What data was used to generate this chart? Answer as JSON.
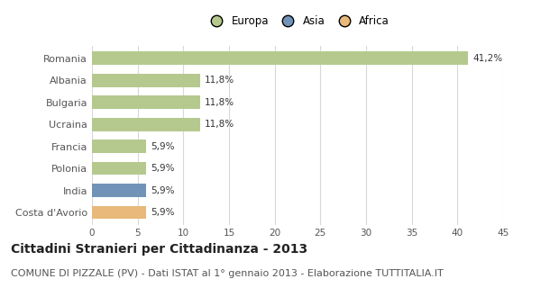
{
  "categories": [
    "Romania",
    "Albania",
    "Bulgaria",
    "Ucraina",
    "Francia",
    "Polonia",
    "India",
    "Costa d'Avorio"
  ],
  "values": [
    41.2,
    11.8,
    11.8,
    11.8,
    5.9,
    5.9,
    5.9,
    5.9
  ],
  "labels": [
    "41,2%",
    "11,8%",
    "11,8%",
    "11,8%",
    "5,9%",
    "5,9%",
    "5,9%",
    "5,9%"
  ],
  "colors": [
    "#b5c98e",
    "#b5c98e",
    "#b5c98e",
    "#b5c98e",
    "#b5c98e",
    "#b5c98e",
    "#7293b8",
    "#e8b97a"
  ],
  "legend_labels": [
    "Europa",
    "Asia",
    "Africa"
  ],
  "legend_colors": [
    "#b5c98e",
    "#7293b8",
    "#e8b97a"
  ],
  "xlim": [
    0,
    45
  ],
  "xticks": [
    0,
    5,
    10,
    15,
    20,
    25,
    30,
    35,
    40,
    45
  ],
  "title": "Cittadini Stranieri per Cittadinanza - 2013",
  "subtitle": "COMUNE DI PIZZALE (PV) - Dati ISTAT al 1° gennaio 2013 - Elaborazione TUTTITALIA.IT",
  "title_fontsize": 10,
  "subtitle_fontsize": 8,
  "background_color": "#ffffff",
  "grid_color": "#d8d8d8",
  "bar_height": 0.6
}
